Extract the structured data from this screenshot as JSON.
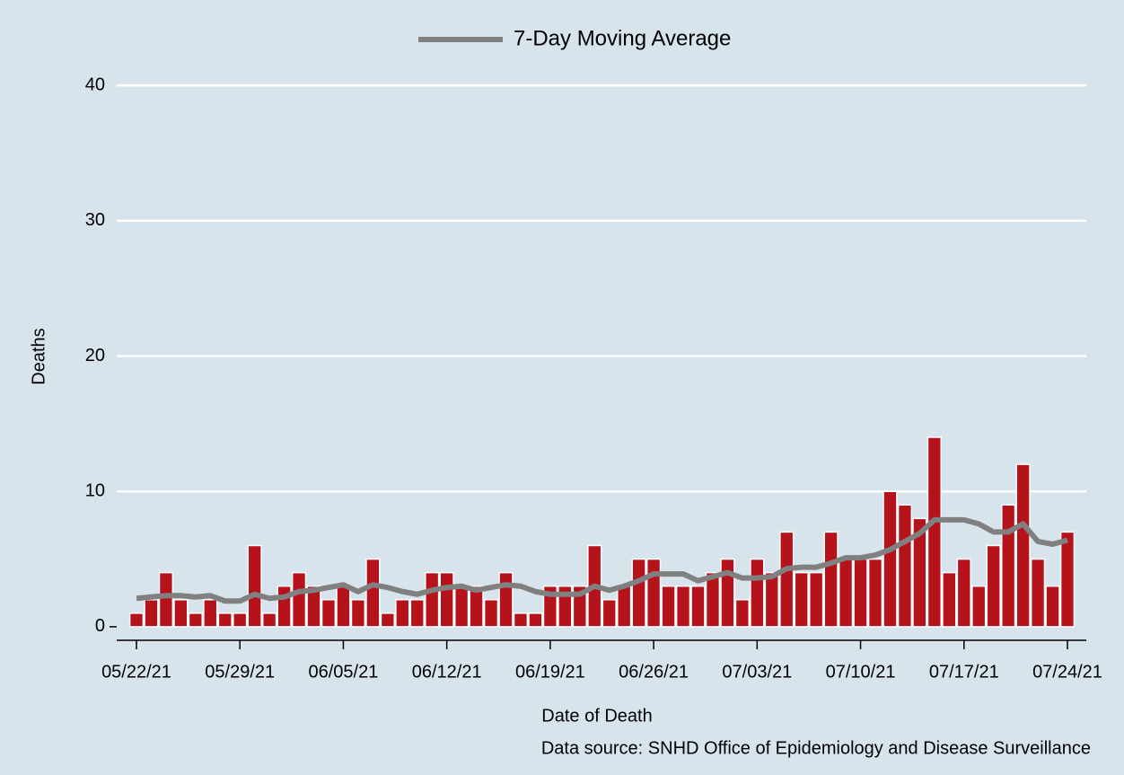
{
  "chart_data": {
    "type": "bar",
    "legend": "top",
    "grid": true,
    "x_label": "Date of Death",
    "y_label": "Deaths",
    "source": "Data source: SNHD Office of Epidemiology and Disease Surveillance",
    "x": [
      "05/22/21",
      "05/23/21",
      "05/24/21",
      "05/25/21",
      "05/26/21",
      "05/27/21",
      "05/28/21",
      "05/29/21",
      "05/30/21",
      "05/31/21",
      "06/01/21",
      "06/02/21",
      "06/03/21",
      "06/04/21",
      "06/05/21",
      "06/06/21",
      "06/07/21",
      "06/08/21",
      "06/09/21",
      "06/10/21",
      "06/11/21",
      "06/12/21",
      "06/13/21",
      "06/14/21",
      "06/15/21",
      "06/16/21",
      "06/17/21",
      "06/18/21",
      "06/19/21",
      "06/20/21",
      "06/21/21",
      "06/22/21",
      "06/23/21",
      "06/24/21",
      "06/25/21",
      "06/26/21",
      "06/27/21",
      "06/28/21",
      "06/29/21",
      "06/30/21",
      "07/01/21",
      "07/02/21",
      "07/03/21",
      "07/04/21",
      "07/05/21",
      "07/06/21",
      "07/07/21",
      "07/08/21",
      "07/09/21",
      "07/10/21",
      "07/11/21",
      "07/12/21",
      "07/13/21",
      "07/14/21",
      "07/15/21",
      "07/16/21",
      "07/17/21",
      "07/18/21",
      "07/19/21",
      "07/20/21",
      "07/21/21",
      "07/22/21",
      "07/23/21",
      "07/24/21"
    ],
    "xticks": [
      "05/22/21",
      "05/29/21",
      "06/05/21",
      "06/12/21",
      "06/19/21",
      "06/26/21",
      "07/03/21",
      "07/10/21",
      "07/17/21",
      "07/24/21"
    ],
    "ylim": [
      -1,
      41
    ],
    "yticks": [
      0,
      10,
      20,
      30,
      40
    ],
    "series": [
      {
        "type": "bar",
        "color": "#b5121b",
        "values": [
          1,
          2,
          4,
          2,
          1,
          2,
          1,
          1,
          6,
          1,
          3,
          4,
          3,
          2,
          3,
          2,
          5,
          1,
          2,
          2,
          4,
          4,
          3,
          3,
          2,
          4,
          1,
          1,
          3,
          3,
          3,
          6,
          2,
          3,
          5,
          5,
          3,
          3,
          3,
          4,
          5,
          2,
          5,
          4,
          7,
          4,
          4,
          7,
          5,
          5,
          5,
          10,
          9,
          8,
          14,
          4,
          5,
          3,
          6,
          9,
          12,
          5,
          3,
          7
        ]
      },
      {
        "type": "line",
        "name": "7-Day Moving Average",
        "color": "#808080",
        "values": [
          2.1,
          2.2,
          2.3,
          2.3,
          2.2,
          2.3,
          1.9,
          1.9,
          2.4,
          2.1,
          2.2,
          2.6,
          2.7,
          2.9,
          3.1,
          2.6,
          3.1,
          2.9,
          2.6,
          2.4,
          2.7,
          2.9,
          3.0,
          2.7,
          2.9,
          3.1,
          3.0,
          2.6,
          2.4,
          2.4,
          2.4,
          3.0,
          2.7,
          3.0,
          3.4,
          3.9,
          3.9,
          3.9,
          3.4,
          3.7,
          4.0,
          3.6,
          3.6,
          3.7,
          4.3,
          4.4,
          4.4,
          4.7,
          5.1,
          5.1,
          5.3,
          5.7,
          6.3,
          6.9,
          7.9,
          7.9,
          7.9,
          7.6,
          7.0,
          7.0,
          7.6,
          6.3,
          6.1,
          6.4
        ]
      }
    ]
  }
}
